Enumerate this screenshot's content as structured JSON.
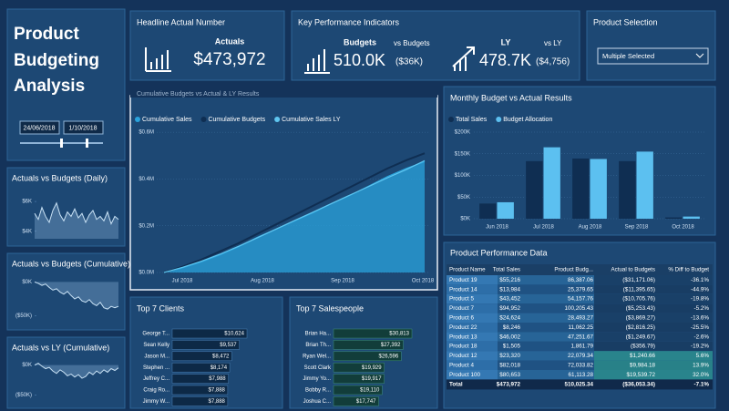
{
  "sidebar": {
    "title_lines": [
      "Product",
      "Budgeting",
      "Analysis"
    ],
    "date_from": "24/06/2018",
    "date_to": "1/10/2018"
  },
  "sparklines": [
    {
      "title": "Actuals vs Budgets (Daily)",
      "ylim": [
        3500,
        6800
      ],
      "yticks": [
        {
          "value": 6000,
          "label": "$6K"
        },
        {
          "value": 4000,
          "label": "$4K"
        }
      ],
      "values": [
        5200,
        4800,
        5600,
        5000,
        4600,
        5400,
        5900,
        5100,
        4700,
        5300,
        5000,
        5500,
        4900,
        5200,
        4600,
        5100,
        5400,
        4800,
        5000,
        4700,
        5300,
        4500,
        5000,
        4800
      ]
    },
    {
      "title": "Actuals vs Budgets (Cumulative)",
      "ylim": [
        -60000,
        10000
      ],
      "yticks": [
        {
          "value": 0,
          "label": "$0K"
        },
        {
          "value": -50000,
          "label": "($50K)"
        }
      ],
      "values": [
        0,
        -2000,
        -5000,
        -3000,
        -8000,
        -12000,
        -10000,
        -15000,
        -18000,
        -14000,
        -20000,
        -25000,
        -22000,
        -28000,
        -30000,
        -26000,
        -32000,
        -35000,
        -30000,
        -38000,
        -40000,
        -36000,
        -38000,
        -36053
      ]
    },
    {
      "title": "Actuals vs LY (Cumulative)",
      "ylim": [
        -60000,
        10000
      ],
      "yticks": [
        {
          "value": 0,
          "label": "$0K"
        },
        {
          "value": -50000,
          "label": "($50K)"
        }
      ],
      "values": [
        0,
        3000,
        -2000,
        -6000,
        -4000,
        -10000,
        -14000,
        -8000,
        -12000,
        -18000,
        -15000,
        -20000,
        -16000,
        -22000,
        -19000,
        -12000,
        -16000,
        -10000,
        -14000,
        -8000,
        -12000,
        -6000,
        -9000,
        -4756
      ]
    }
  ],
  "headline": {
    "title": "Headline Actual Number",
    "label": "Actuals",
    "value": "$473,972"
  },
  "kpi": {
    "title": "Key Performance Indicators",
    "budgets_label": "Budgets",
    "budgets_value": "510.0K",
    "budgets_sub": "vs Budgets",
    "budgets_diff": "($36K)",
    "ly_label": "LY",
    "ly_value": "478.7K",
    "ly_sub": "vs LY",
    "ly_diff": "($4,756)"
  },
  "product_selection": {
    "title": "Product Selection",
    "value": "Multiple Selected"
  },
  "cumulative_chart": {
    "type": "area",
    "title": "Cumulative Budgets vs Actual & LY Results",
    "series": [
      {
        "name": "Cumulative Sales",
        "color": "#2aa3dc",
        "values": [
          0,
          20000,
          45000,
          75000,
          110000,
          150000,
          185000,
          220000,
          255000,
          295000,
          330000,
          370000,
          410000,
          445000,
          473972
        ]
      },
      {
        "name": "Cumulative Budgets",
        "color": "#0f2e52",
        "values": [
          0,
          25000,
          55000,
          90000,
          125000,
          165000,
          205000,
          245000,
          285000,
          325000,
          365000,
          405000,
          445000,
          480000,
          510025
        ]
      },
      {
        "name": "Cumulative Sales LY",
        "color": "#5fc6f0",
        "values": [
          0,
          22000,
          48000,
          78000,
          112000,
          148000,
          185000,
          222000,
          258000,
          295000,
          332000,
          368000,
          405000,
          440000,
          478728
        ]
      }
    ],
    "xticks": [
      "Jul 2018",
      "Aug 2018",
      "Sep 2018",
      "Oct 2018"
    ],
    "ylim": [
      0,
      620000
    ],
    "yticks": [
      {
        "value": 0,
        "label": "$0.0M"
      },
      {
        "value": 200000,
        "label": "$0.2M"
      },
      {
        "value": 400000,
        "label": "$0.4M"
      },
      {
        "value": 600000,
        "label": "$0.6M"
      }
    ]
  },
  "monthly_chart": {
    "type": "bar",
    "title": "Monthly Budget vs Actual Results",
    "categories": [
      "Jun 2018",
      "Jul 2018",
      "Aug 2018",
      "Sep 2018",
      "Oct 2018"
    ],
    "series": [
      {
        "name": "Total Sales",
        "color": "#0f2e52",
        "values": [
          35000,
          133000,
          139000,
          133000,
          3000
        ]
      },
      {
        "name": "Budget Allocation",
        "color": "#5cc0f0",
        "values": [
          38000,
          165000,
          138000,
          155000,
          5000
        ]
      }
    ],
    "ylim": [
      0,
      200000
    ],
    "yticks": [
      {
        "value": 0,
        "label": "$0K"
      },
      {
        "value": 50000,
        "label": "$50K"
      },
      {
        "value": 100000,
        "label": "$100K"
      },
      {
        "value": 150000,
        "label": "$150K"
      },
      {
        "value": 200000,
        "label": "$200K"
      }
    ]
  },
  "product_table": {
    "title": "Product Performance Data",
    "columns": [
      "Product Name",
      "Total Sales",
      "Product Budg...",
      "Actual to Budgets",
      "% Diff to Budget"
    ],
    "rows": [
      [
        "Product 19",
        "$55,216",
        "86,387.06",
        "($31,171.06)",
        "-36.1%"
      ],
      [
        "Product 14",
        "$13,984",
        "25,379.65",
        "($11,395.65)",
        "-44.9%"
      ],
      [
        "Product 5",
        "$43,452",
        "54,157.76",
        "($10,705.76)",
        "-19.8%"
      ],
      [
        "Product 7",
        "$94,952",
        "100,205.43",
        "($5,253.43)",
        "-5.2%"
      ],
      [
        "Product 6",
        "$24,624",
        "28,493.27",
        "($3,869.27)",
        "-13.6%"
      ],
      [
        "Product 22",
        "$8,246",
        "11,062.25",
        "($2,816.25)",
        "-25.5%"
      ],
      [
        "Product 13",
        "$46,002",
        "47,251.67",
        "($1,249.67)",
        "-2.6%"
      ],
      [
        "Product 18",
        "$1,505",
        "1,861.79",
        "($356.79)",
        "-19.2%"
      ],
      [
        "Product 12",
        "$23,320",
        "22,079.34",
        "$1,240.66",
        "5.6%"
      ],
      [
        "Product 4",
        "$82,018",
        "72,033.82",
        "$9,984.18",
        "13.9%"
      ],
      [
        "Product 100",
        "$80,653",
        "61,113.28",
        "$19,539.72",
        "32.0%"
      ]
    ],
    "total": [
      "Total",
      "$473,972",
      "510,025.34",
      "($36,053.34)",
      "-7.1%"
    ]
  },
  "top_clients": {
    "title": "Top 7 Clients",
    "names": [
      "George T...",
      "Sean Kelly",
      "Jason M...",
      "Stephen ...",
      "Jeffrey C...",
      "Craig Ro...",
      "Jimmy W..."
    ],
    "values": [
      10624,
      9537,
      8472,
      8174,
      7988,
      7888,
      7888
    ],
    "value_labels": [
      "$10,624",
      "$9,537",
      "$8,472",
      "$8,174",
      "$7,988",
      "$7,888",
      "$7,888"
    ]
  },
  "top_salespeople": {
    "title": "Top 7 Salespeople",
    "names": [
      "Brian Ha...",
      "Brian Th...",
      "Ryan Wel...",
      "Scott Clark",
      "Jimmy Yo...",
      "Bobby R...",
      "Joshua C..."
    ],
    "values": [
      30813,
      27392,
      26596,
      19929,
      19917,
      19110,
      17747
    ],
    "value_labels": [
      "$30,813",
      "$27,392",
      "$26,596",
      "$19,929",
      "$19,917",
      "$19,110",
      "$17,747"
    ]
  }
}
